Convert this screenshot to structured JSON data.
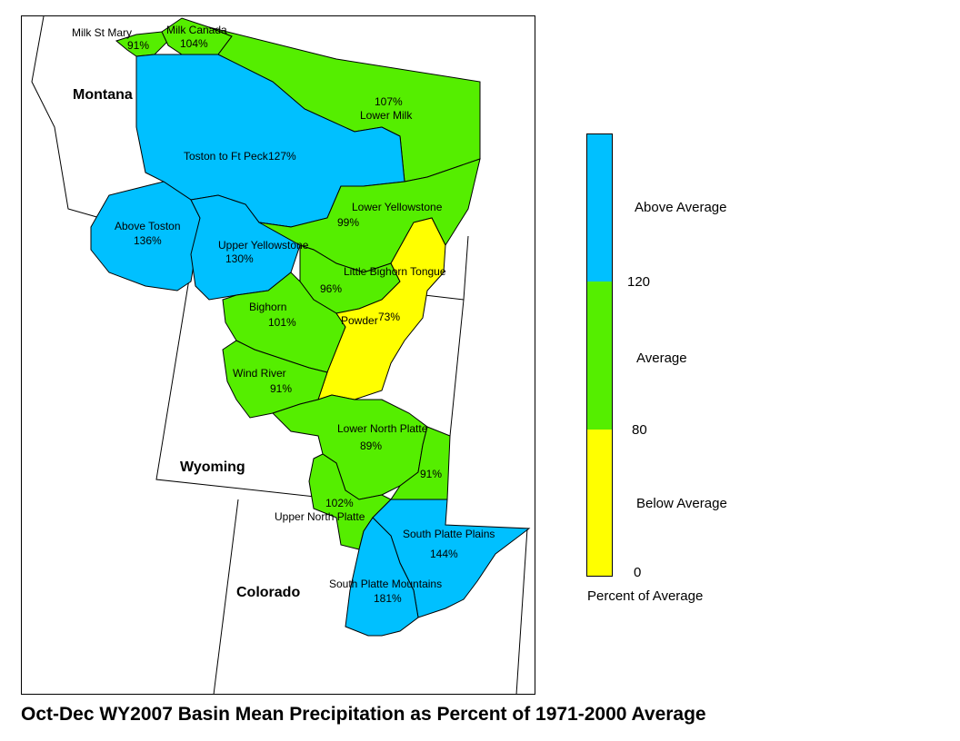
{
  "title": "Oct-Dec WY2007 Basin Mean Precipitation as Percent of 1971-2000 Average",
  "states": [
    "Montana",
    "Wyoming",
    "Colorado"
  ],
  "colors": {
    "above": "#00c0ff",
    "average": "#55ee00",
    "below": "#ffff00"
  },
  "legend": {
    "classes": [
      "Above Average",
      "Average",
      "Below Average"
    ],
    "breaks": [
      "120",
      "80",
      "0"
    ],
    "caption": "Percent of Average"
  },
  "basins": [
    {
      "name": "Milk St Mary",
      "value": "91%",
      "class": "average"
    },
    {
      "name": "Milk Canada",
      "value": "104%",
      "class": "average"
    },
    {
      "name": "Lower Milk",
      "value": "107%",
      "class": "average"
    },
    {
      "name": "Toston to Ft Peck",
      "value": "127%",
      "class": "above"
    },
    {
      "name": "Above Toston",
      "value": "136%",
      "class": "above"
    },
    {
      "name": "Upper Yellowstone",
      "value": "130%",
      "class": "above"
    },
    {
      "name": "Lower Yellowstone",
      "value": "99%",
      "class": "average"
    },
    {
      "name": "Little Bighorn Tongue",
      "value": "96%",
      "class": "average"
    },
    {
      "name": "Bighorn",
      "value": "101%",
      "class": "average"
    },
    {
      "name": "Powder",
      "value": "73%",
      "class": "below"
    },
    {
      "name": "Wind River",
      "value": "91%",
      "class": "average"
    },
    {
      "name": "Lower North Platte",
      "value": "89%",
      "class": "average"
    },
    {
      "name": "",
      "value": "91%",
      "class": "average"
    },
    {
      "name": "Upper North Platte",
      "value": "102%",
      "class": "average"
    },
    {
      "name": "South Platte Plains",
      "value": "144%",
      "class": "above"
    },
    {
      "name": "South Platte Mountains",
      "value": "181%",
      "class": "above"
    }
  ]
}
